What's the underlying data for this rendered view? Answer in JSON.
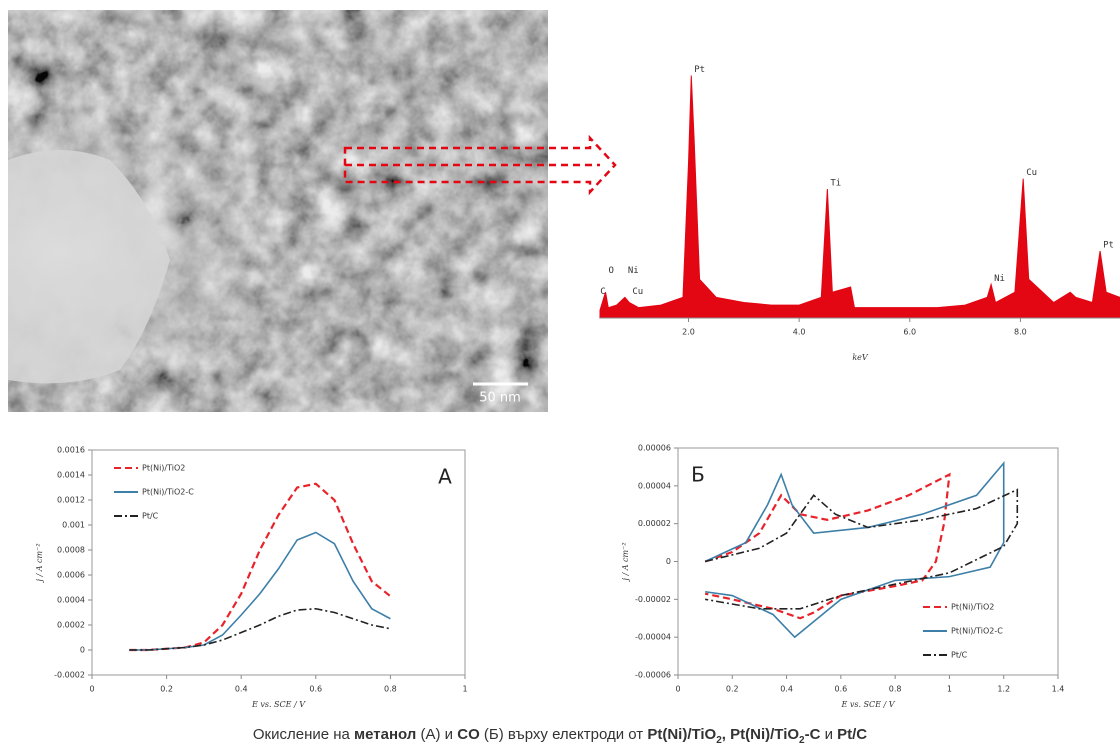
{
  "tem": {
    "scale_label": "50 nm"
  },
  "chart_data": [
    {
      "type": "area",
      "color": "#e30613",
      "xlabel": "keV",
      "xlim": [
        0.4,
        9.8
      ],
      "ylim": [
        0,
        100
      ],
      "xticks": [
        {
          "value": 2,
          "label": "2.0"
        },
        {
          "value": 4,
          "label": "4.0"
        },
        {
          "value": 6,
          "label": "6.0"
        },
        {
          "value": 8,
          "label": "8.0"
        }
      ],
      "x": [
        0.4,
        0.5,
        0.55,
        0.7,
        0.85,
        0.93,
        1.1,
        1.5,
        1.9,
        2.0,
        2.05,
        2.1,
        2.2,
        2.5,
        3.0,
        3.5,
        4.0,
        4.4,
        4.51,
        4.6,
        4.93,
        5.0,
        5.5,
        6.0,
        6.5,
        7.0,
        7.4,
        7.47,
        7.55,
        7.9,
        8.05,
        8.15,
        8.6,
        8.9,
        9.0,
        9.3,
        9.44,
        9.55,
        9.8
      ],
      "values": [
        3,
        10,
        4,
        5,
        8,
        6,
        4,
        5,
        8,
        60,
        94,
        70,
        15,
        8,
        6,
        5,
        5,
        8,
        50,
        10,
        12,
        4,
        4,
        4,
        4,
        5,
        8,
        13,
        6,
        10,
        54,
        15,
        6,
        10,
        8,
        6,
        26,
        10,
        8
      ],
      "annotations": [
        {
          "text": "C",
          "x": 0.35,
          "y": 8
        },
        {
          "text": "O",
          "x": 0.5,
          "y": 16
        },
        {
          "text": "Ni",
          "x": 0.85,
          "y": 16
        },
        {
          "text": "Cu",
          "x": 0.93,
          "y": 8
        },
        {
          "text": "Pt",
          "x": 2.05,
          "y": 94
        },
        {
          "text": "Ti",
          "x": 4.51,
          "y": 50
        },
        {
          "text": "Ni",
          "x": 7.47,
          "y": 13
        },
        {
          "text": "Cu",
          "x": 8.05,
          "y": 54
        },
        {
          "text": "Pt",
          "x": 9.44,
          "y": 26
        }
      ]
    },
    {
      "type": "line",
      "corner_label": "А",
      "xlabel": "E vs. SCE / V",
      "ylabel": "j / A cm⁻²",
      "xlim": [
        0,
        1
      ],
      "ylim": [
        -0.0002,
        0.0016
      ],
      "xticks": [
        0,
        0.2,
        0.4,
        0.6,
        0.8,
        1
      ],
      "yticks": [
        -0.0002,
        0,
        0.0002,
        0.0004,
        0.0006,
        0.0008,
        0.001,
        0.0012,
        0.0014,
        0.0016
      ],
      "legend": "upper left",
      "x": [
        0.1,
        0.15,
        0.2,
        0.25,
        0.3,
        0.35,
        0.4,
        0.45,
        0.5,
        0.55,
        0.6,
        0.65,
        0.7,
        0.75,
        0.8
      ],
      "series": [
        {
          "name": "Pt(Ni)/TiO2",
          "color": "#e8232a",
          "dash": "7 4",
          "values": [
            0,
            0,
            1e-05,
            2e-05,
            6e-05,
            0.0002,
            0.00045,
            0.0008,
            0.00108,
            0.0013,
            0.00133,
            0.0012,
            0.00085,
            0.00055,
            0.00043
          ]
        },
        {
          "name": "Pt(Ni)/TiO2-C",
          "color": "#3d7fa8",
          "dash": "",
          "values": [
            0,
            0,
            1e-05,
            2e-05,
            4e-05,
            0.00012,
            0.00028,
            0.00045,
            0.00065,
            0.00088,
            0.00094,
            0.00085,
            0.00055,
            0.00033,
            0.00025
          ]
        },
        {
          "name": "Pt/C",
          "color": "#222222",
          "dash": "8 3 2 3",
          "values": [
            0,
            0,
            1e-05,
            2e-05,
            4e-05,
            8e-05,
            0.00014,
            0.0002,
            0.00027,
            0.00032,
            0.00033,
            0.0003,
            0.00025,
            0.0002,
            0.00017
          ]
        }
      ]
    },
    {
      "type": "line",
      "corner_label": "Б",
      "xlabel": "E vs. SCE / V",
      "ylabel": "j / A cm⁻²",
      "xlim": [
        0,
        1.4
      ],
      "ylim": [
        -6e-05,
        6e-05
      ],
      "xticks": [
        0,
        0.2,
        0.4,
        0.6,
        0.8,
        1,
        1.2,
        1.4
      ],
      "yticks": [
        -6e-05,
        -4e-05,
        -2e-05,
        0,
        2e-05,
        4e-05,
        6e-05
      ],
      "legend": "lower right",
      "series": [
        {
          "name": "Pt(Ni)/TiO2",
          "color": "#e8232a",
          "dash": "7 4",
          "x": [
            0.1,
            0.2,
            0.3,
            0.38,
            0.45,
            0.55,
            0.7,
            0.85,
            1.0,
            0.98,
            0.95,
            0.9,
            0.8,
            0.6,
            0.5,
            0.45,
            0.35,
            0.2,
            0.1
          ],
          "values": [
            0,
            5e-06,
            1.5e-05,
            3.5e-05,
            2.5e-05,
            2.2e-05,
            2.7e-05,
            3.5e-05,
            4.6e-05,
            2e-05,
            0,
            -1e-05,
            -1.3e-05,
            -1.8e-05,
            -2.7e-05,
            -3e-05,
            -2.5e-05,
            -2e-05,
            -1.7e-05
          ]
        },
        {
          "name": "Pt(Ni)/TiO2-C",
          "color": "#3d7fa8",
          "dash": "",
          "x": [
            0.1,
            0.25,
            0.33,
            0.38,
            0.42,
            0.5,
            0.7,
            0.9,
            1.1,
            1.2,
            1.2,
            1.15,
            1.0,
            0.8,
            0.6,
            0.43,
            0.35,
            0.2,
            0.1
          ],
          "values": [
            0,
            1e-05,
            3e-05,
            4.6e-05,
            3e-05,
            1.5e-05,
            1.8e-05,
            2.5e-05,
            3.5e-05,
            5.2e-05,
            1e-05,
            -3e-06,
            -8e-06,
            -1e-05,
            -2e-05,
            -4e-05,
            -2.8e-05,
            -1.8e-05,
            -1.6e-05
          ]
        },
        {
          "name": "Pt/C",
          "color": "#222222",
          "dash": "8 3 2 3",
          "x": [
            0.1,
            0.3,
            0.4,
            0.5,
            0.58,
            0.7,
            0.9,
            1.1,
            1.25,
            1.25,
            1.2,
            1.0,
            0.8,
            0.6,
            0.45,
            0.3,
            0.1
          ],
          "values": [
            0,
            7e-06,
            1.5e-05,
            3.5e-05,
            2.5e-05,
            1.8e-05,
            2.2e-05,
            2.8e-05,
            3.8e-05,
            2e-05,
            8e-06,
            -6e-06,
            -1.2e-05,
            -1.8e-05,
            -2.5e-05,
            -2.5e-05,
            -2e-05
          ]
        }
      ]
    }
  ],
  "caption": {
    "parts": [
      {
        "text": "Окисление на ",
        "style": "normal"
      },
      {
        "text": "метанол",
        "style": "bold"
      },
      {
        "text": " (А) и ",
        "style": "normal"
      },
      {
        "text": "CO",
        "style": "bold"
      },
      {
        "text": " (Б)  върху   електроди от ",
        "style": "normal"
      },
      {
        "text": "Pt(Ni)/TiO",
        "style": "bold"
      },
      {
        "text": "2",
        "style": "boldsub"
      },
      {
        "text": ", ",
        "style": "bold"
      },
      {
        "text": "Pt(Ni)/TiO",
        "style": "bold"
      },
      {
        "text": "2",
        "style": "boldsub"
      },
      {
        "text": "-C",
        "style": "bold"
      },
      {
        "text": " и ",
        "style": "normal"
      },
      {
        "text": "Pt/C",
        "style": "bold"
      }
    ]
  }
}
